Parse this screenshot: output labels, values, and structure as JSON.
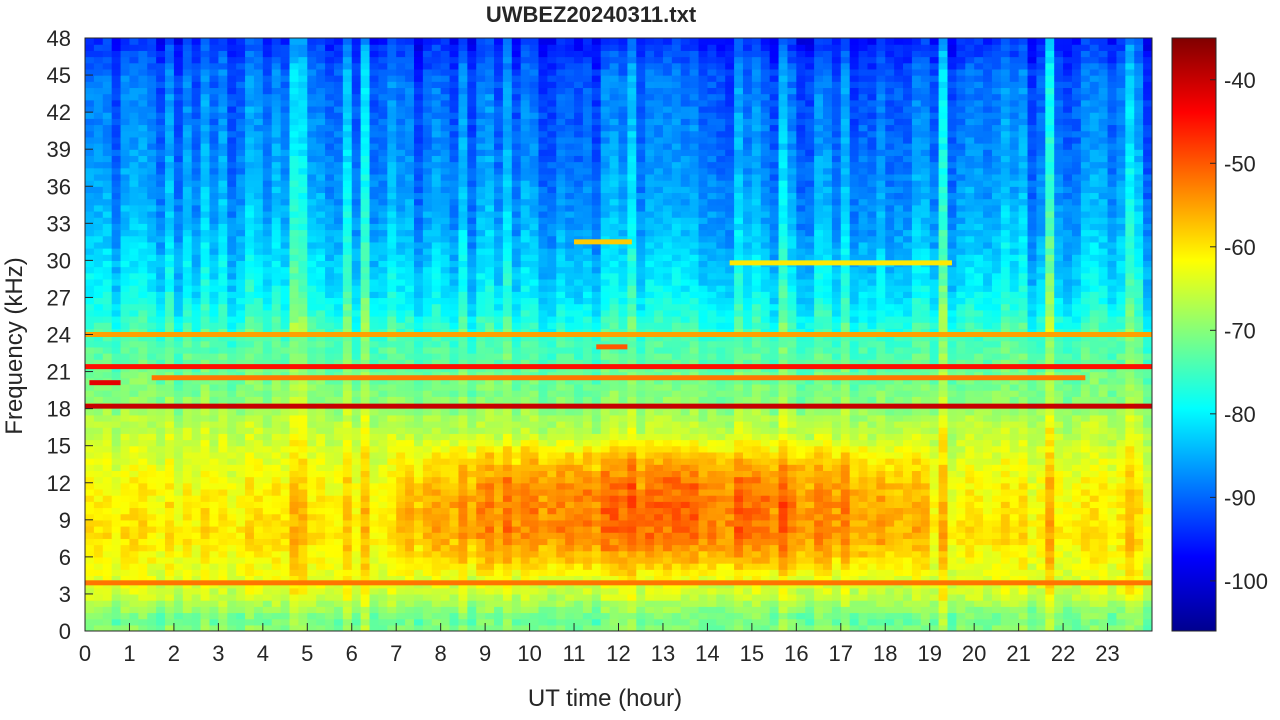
{
  "chart_data": {
    "type": "heatmap",
    "title": "UWBEZ20240311.txt",
    "xlabel": "UT time (hour)",
    "ylabel": "Frequency (kHz)",
    "xlim": [
      0,
      24
    ],
    "ylim": [
      0,
      48
    ],
    "x_ticks": [
      0,
      1,
      2,
      3,
      4,
      5,
      6,
      7,
      8,
      9,
      10,
      11,
      12,
      13,
      14,
      15,
      16,
      17,
      18,
      19,
      20,
      21,
      22,
      23
    ],
    "y_ticks": [
      0,
      3,
      6,
      9,
      12,
      15,
      18,
      21,
      24,
      27,
      30,
      33,
      36,
      39,
      42,
      45,
      48
    ],
    "colorbar": {
      "colormap": "jet",
      "clim": [
        -106,
        -35
      ],
      "ticks": [
        -100,
        -90,
        -80,
        -70,
        -60,
        -50,
        -40
      ]
    },
    "background_level_by_frequency": [
      {
        "freq_khz": 0,
        "level": -70
      },
      {
        "freq_khz": 1,
        "level": -72
      },
      {
        "freq_khz": 3,
        "level": -65
      },
      {
        "freq_khz": 5,
        "level": -63
      },
      {
        "freq_khz": 8,
        "level": -60
      },
      {
        "freq_khz": 12,
        "level": -62
      },
      {
        "freq_khz": 15,
        "level": -65
      },
      {
        "freq_khz": 17,
        "level": -67
      },
      {
        "freq_khz": 18.5,
        "level": -70
      },
      {
        "freq_khz": 21,
        "level": -72
      },
      {
        "freq_khz": 24,
        "level": -75
      },
      {
        "freq_khz": 27,
        "level": -80
      },
      {
        "freq_khz": 33,
        "level": -85
      },
      {
        "freq_khz": 39,
        "level": -88
      },
      {
        "freq_khz": 45,
        "level": -90
      },
      {
        "freq_khz": 48,
        "level": -95
      }
    ],
    "active_period": {
      "x_range": [
        7,
        19
      ],
      "freq_range": [
        4,
        16
      ],
      "peak_level": -50
    },
    "strong_tones": [
      {
        "freq_khz": 18.2,
        "x_range": [
          0,
          24
        ],
        "level": -40
      },
      {
        "freq_khz": 21.4,
        "x_range": [
          0,
          24
        ],
        "level": -45
      },
      {
        "freq_khz": 24.0,
        "x_range": [
          0,
          24
        ],
        "level": -55
      },
      {
        "freq_khz": 3.9,
        "x_range": [
          0,
          24
        ],
        "level": -52
      },
      {
        "freq_khz": 20.1,
        "x_range": [
          0.1,
          0.8
        ],
        "level": -42
      },
      {
        "freq_khz": 23.0,
        "x_range": [
          11.5,
          12.2
        ],
        "level": -50
      },
      {
        "freq_khz": 31.5,
        "x_range": [
          11.0,
          12.3
        ],
        "level": -58
      },
      {
        "freq_khz": 29.8,
        "x_range": [
          14.5,
          19.5
        ],
        "level": -60
      },
      {
        "freq_khz": 20.5,
        "x_range": [
          1.5,
          22.5
        ],
        "level": -52
      }
    ]
  }
}
